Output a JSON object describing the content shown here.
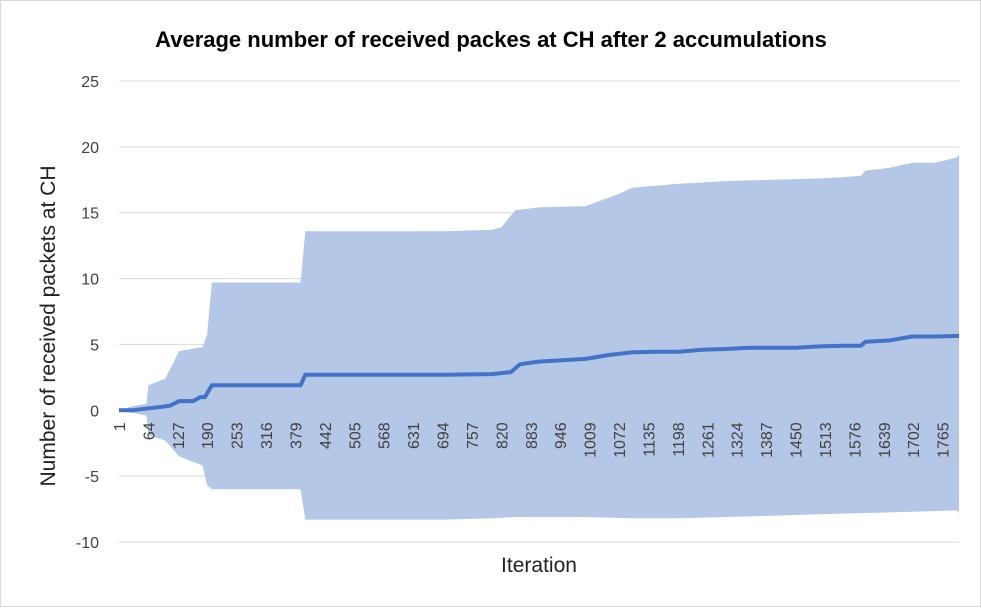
{
  "chart_data": {
    "type": "area",
    "title": "Average number of received packes at CH after 2 accumulations",
    "xlabel": "Iteration",
    "ylabel": "Number of received packets at CH",
    "ylim": [
      -10,
      25
    ],
    "yticks": [
      -10,
      -5,
      0,
      5,
      10,
      15,
      20,
      25
    ],
    "xlim": [
      1,
      1800
    ],
    "xticks": [
      1,
      64,
      127,
      190,
      253,
      316,
      379,
      442,
      505,
      568,
      631,
      694,
      757,
      820,
      883,
      946,
      1009,
      1072,
      1135,
      1198,
      1261,
      1324,
      1387,
      1450,
      1513,
      1576,
      1639,
      1702,
      1765
    ],
    "grid": true,
    "legend": "none",
    "series": [
      {
        "role": "average",
        "color": "#4472c4",
        "x": [
          1,
          30,
          64,
          90,
          110,
          130,
          160,
          175,
          185,
          200,
          250,
          300,
          350,
          390,
          400,
          450,
          500,
          600,
          700,
          800,
          840,
          860,
          900,
          1000,
          1050,
          1100,
          1150,
          1200,
          1250,
          1300,
          1350,
          1400,
          1450,
          1500,
          1550,
          1590,
          1600,
          1650,
          1700,
          1750,
          1800
        ],
        "values": [
          0,
          0,
          0.15,
          0.25,
          0.35,
          0.7,
          0.7,
          1.0,
          1.0,
          1.9,
          1.9,
          1.9,
          1.9,
          1.9,
          2.7,
          2.7,
          2.7,
          2.7,
          2.7,
          2.75,
          2.9,
          3.5,
          3.7,
          3.9,
          4.2,
          4.4,
          4.45,
          4.45,
          4.6,
          4.65,
          4.75,
          4.75,
          4.75,
          4.85,
          4.9,
          4.9,
          5.2,
          5.3,
          5.6,
          5.6,
          5.65
        ]
      },
      {
        "role": "upper-band",
        "color": "#b4c7e7",
        "x": [
          1,
          30,
          60,
          64,
          100,
          130,
          180,
          190,
          200,
          250,
          300,
          390,
          400,
          500,
          600,
          700,
          800,
          820,
          850,
          900,
          1000,
          1070,
          1100,
          1200,
          1300,
          1400,
          1500,
          1550,
          1590,
          1600,
          1650,
          1700,
          1750,
          1795,
          1800
        ],
        "values": [
          0,
          0.3,
          0.5,
          1.9,
          2.4,
          4.5,
          4.8,
          5.8,
          9.7,
          9.7,
          9.7,
          9.7,
          13.6,
          13.6,
          13.6,
          13.6,
          13.7,
          13.9,
          15.2,
          15.4,
          15.5,
          16.4,
          16.9,
          17.2,
          17.4,
          17.5,
          17.6,
          17.7,
          17.8,
          18.2,
          18.4,
          18.8,
          18.8,
          19.2,
          19.4
        ]
      },
      {
        "role": "lower-band",
        "color": "#b4c7e7",
        "x": [
          1,
          30,
          60,
          64,
          100,
          130,
          180,
          190,
          200,
          250,
          300,
          390,
          400,
          500,
          600,
          700,
          800,
          850,
          900,
          1000,
          1100,
          1200,
          1300,
          1400,
          1500,
          1600,
          1700,
          1795,
          1800
        ],
        "values": [
          0,
          -0.2,
          -0.4,
          -1.9,
          -2.3,
          -3.5,
          -4.2,
          -5.7,
          -6.0,
          -6.0,
          -6.0,
          -6.0,
          -8.3,
          -8.3,
          -8.3,
          -8.3,
          -8.2,
          -8.1,
          -8.1,
          -8.1,
          -8.2,
          -8.2,
          -8.1,
          -8.0,
          -7.9,
          -7.8,
          -7.7,
          -7.6,
          -7.8
        ]
      }
    ]
  }
}
